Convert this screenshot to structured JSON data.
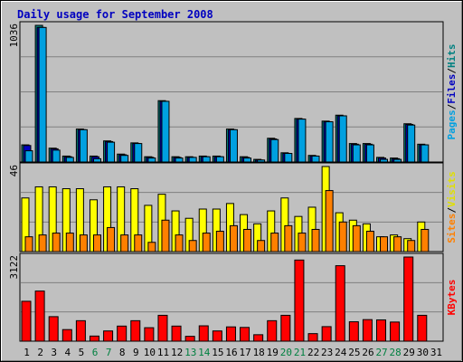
{
  "chart_data": {
    "type": "bar",
    "title": "Daily usage for September 2008",
    "days": [
      "1",
      "2",
      "3",
      "4",
      "5",
      "6",
      "7",
      "8",
      "9",
      "10",
      "11",
      "12",
      "13",
      "14",
      "15",
      "16",
      "17",
      "18",
      "19",
      "20",
      "21",
      "22",
      "23",
      "24",
      "25",
      "26",
      "27",
      "28",
      "29",
      "30",
      "31"
    ],
    "weekend_days": [
      "6",
      "7",
      "13",
      "14",
      "20",
      "21",
      "27",
      "28"
    ],
    "panels": [
      {
        "max_label": "1036",
        "ymax": 1036,
        "legend": [
          "Pages",
          "/",
          "Files",
          "/",
          "Hits"
        ],
        "legend_colors": [
          "#00a0e0",
          "#000000",
          "#0000c0",
          "#000000",
          "#008080"
        ],
        "series": [
          {
            "name": "Hits",
            "color": "#008080",
            "values": [
              130,
              1036,
              105,
              45,
              250,
              45,
              160,
              60,
              145,
              40,
              465,
              40,
              40,
              45,
              45,
              250,
              40,
              20,
              180,
              70,
              330,
              50,
              310,
              355,
              140,
              140,
              35,
              30,
              290,
              135,
              null
            ]
          },
          {
            "name": "Files",
            "color": "#0000c0",
            "values": [
              125,
              1020,
              100,
              40,
              245,
              40,
              155,
              55,
              140,
              35,
              460,
              35,
              35,
              40,
              40,
              245,
              35,
              15,
              175,
              65,
              325,
              45,
              305,
              350,
              135,
              135,
              30,
              25,
              285,
              130,
              null
            ]
          },
          {
            "name": "Pages",
            "color": "#00a0e0",
            "values": [
              85,
              1020,
              90,
              35,
              245,
              25,
              150,
              50,
              140,
              30,
              460,
              30,
              35,
              40,
              40,
              245,
              30,
              15,
              170,
              65,
              325,
              45,
              305,
              350,
              130,
              130,
              20,
              20,
              280,
              130,
              null
            ]
          }
        ]
      },
      {
        "max_label": "46",
        "ymax": 46,
        "legend": [
          "Sites",
          "/",
          "Visits"
        ],
        "legend_colors": [
          "#ff8000",
          "#000000",
          "#e0e000"
        ],
        "series": [
          {
            "name": "Visits",
            "color": "#ffff00",
            "values": [
              29,
              35,
              35,
              34,
              34,
              28,
              35,
              35,
              34,
              25,
              31,
              22,
              18,
              23,
              23,
              26,
              20,
              15,
              22,
              29,
              19,
              24,
              46,
              21,
              17,
              15,
              8,
              9,
              7,
              16,
              null
            ]
          },
          {
            "name": "Sites",
            "color": "#ff8000",
            "values": [
              8,
              9,
              10,
              10,
              9,
              9,
              13,
              9,
              9,
              5,
              17,
              9,
              6,
              10,
              11,
              14,
              12,
              6,
              10,
              14,
              10,
              12,
              33,
              16,
              14,
              11,
              8,
              8,
              6,
              12,
              null
            ]
          }
        ]
      },
      {
        "max_label": "3122",
        "ymax": 3122,
        "legend": [
          "KBytes"
        ],
        "legend_colors": [
          "#ff0000"
        ],
        "series": [
          {
            "name": "KBytes",
            "color": "#ff0000",
            "values": [
              1480,
              1860,
              910,
              430,
              760,
              190,
              380,
              560,
              760,
              500,
              960,
              560,
              180,
              570,
              380,
              530,
              510,
              240,
              760,
              960,
              3010,
              280,
              540,
              2800,
              720,
              800,
              790,
              710,
              3122,
              960,
              null
            ]
          }
        ]
      }
    ]
  }
}
